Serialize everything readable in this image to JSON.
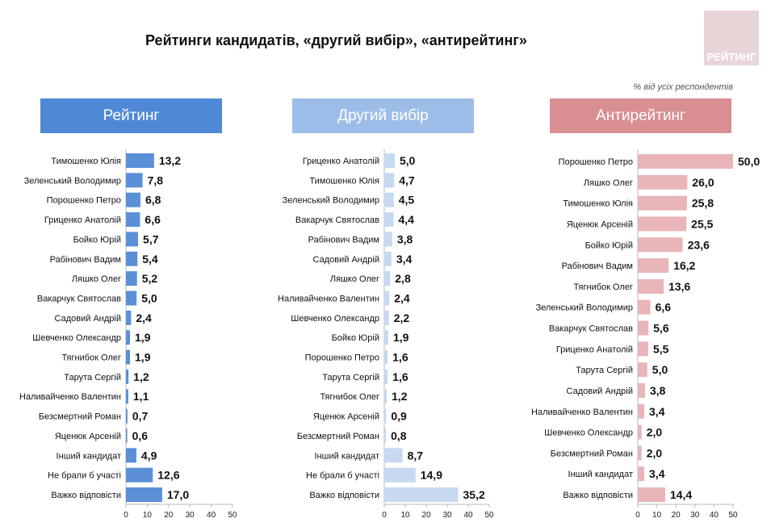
{
  "title": "Рейтинги кандидатів, «другий вибір», «антирейтинг»",
  "note": "% від усіх респондентів",
  "logo_text": "РЕЙТИНГ",
  "chart_data": [
    {
      "type": "bar",
      "orientation": "horizontal",
      "title": "Рейтинг",
      "header_color": "#4f89d6",
      "bar_color": "#5b8fd6",
      "xlim": [
        0,
        50
      ],
      "xticks": [
        0,
        10,
        20,
        30,
        40,
        50
      ],
      "categories": [
        "Тимошенко Юлія",
        "Зеленський Володимир",
        "Порошенко Петро",
        "Гриценко Анатолій",
        "Бойко Юрій",
        "Рабінович Вадим",
        "Ляшко Олег",
        "Вакарчук Святослав",
        "Садовий Андрій",
        "Шевченко Олександр",
        "Тягнибок Олег",
        "Тарута Сергій",
        "Наливайченко Валентин",
        "Безсмертний Роман",
        "Яценюк Арсеній",
        "Інший кандидат",
        "Не брали б участі",
        "Важко відповісти"
      ],
      "values": [
        13.2,
        7.8,
        6.8,
        6.6,
        5.7,
        5.4,
        5.2,
        5.0,
        2.4,
        1.9,
        1.9,
        1.2,
        1.1,
        0.7,
        0.6,
        4.9,
        12.6,
        17.0
      ]
    },
    {
      "type": "bar",
      "orientation": "horizontal",
      "title": "Другий вибір",
      "header_color": "#9dbde8",
      "bar_color": "#c6d9f1",
      "xlim": [
        0,
        50
      ],
      "xticks": [
        0,
        10,
        20,
        30,
        40,
        50
      ],
      "categories": [
        "Гриценко Анатолій",
        "Тимошенко Юлія",
        "Зеленський Володимир",
        "Вакарчук Святослав",
        "Рабінович Вадим",
        "Садовий Андрій",
        "Ляшко Олег",
        "Наливайченко Валентин",
        "Шевченко Олександр",
        "Бойко Юрій",
        "Порошенко Петро",
        "Тарута Сергій",
        "Тягнибок Олег",
        "Яценюк Арсеній",
        "Безсмертний Роман",
        "Інший кандидат",
        "Не брали б участі",
        "Важко відповісти"
      ],
      "values": [
        5.0,
        4.7,
        4.5,
        4.4,
        3.8,
        3.4,
        2.8,
        2.4,
        2.2,
        1.9,
        1.6,
        1.6,
        1.2,
        0.9,
        0.8,
        8.7,
        14.9,
        35.2
      ]
    },
    {
      "type": "bar",
      "orientation": "horizontal",
      "title": "Антирейтинг",
      "header_color": "#d98e92",
      "bar_color": "#e9b5b9",
      "xlim": [
        0,
        50
      ],
      "xticks": [
        0,
        10,
        20,
        30,
        40,
        50
      ],
      "categories": [
        "Порошенко Петро",
        "Ляшко Олег",
        "Тимошенко Юлія",
        "Яценюк Арсеній",
        "Бойко Юрій",
        "Рабінович Вадим",
        "Тягнибок Олег",
        "Зеленський Володимир",
        "Вакарчук Святослав",
        "Гриценко Анатолій",
        "Тарута Сергій",
        "Садовий Андрій",
        "Наливайченко Валентин",
        "Шевченко Олександр",
        "Безсмертний Роман",
        "Інший кандидат",
        "Важко відповісти"
      ],
      "values": [
        50.0,
        26.0,
        25.8,
        25.5,
        23.6,
        16.2,
        13.6,
        6.6,
        5.6,
        5.5,
        5.0,
        3.8,
        3.4,
        2.0,
        2.0,
        3.4,
        14.4
      ]
    }
  ]
}
